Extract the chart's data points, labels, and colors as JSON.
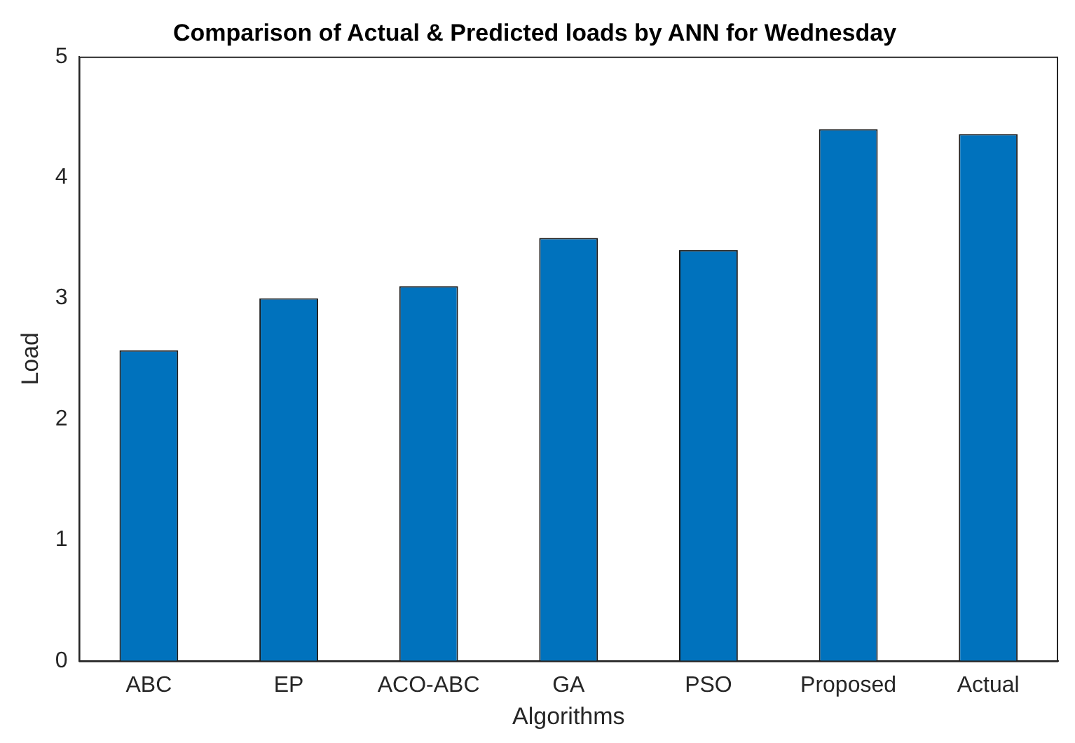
{
  "chart_data": {
    "type": "bar",
    "title": "Comparison of Actual & Predicted loads by ANN for Wednesday",
    "xlabel": "Algorithms",
    "ylabel": "Load",
    "categories": [
      "ABC",
      "EP",
      "ACO-ABC",
      "GA",
      "PSO",
      "Proposed",
      "Actual"
    ],
    "values": [
      2.57,
      3.0,
      3.1,
      3.5,
      3.4,
      4.4,
      4.36
    ],
    "color": "#0072bd",
    "ylim": [
      0,
      5
    ],
    "yticks": [
      0,
      1,
      2,
      3,
      4,
      5
    ],
    "grid": false,
    "legend": false
  }
}
